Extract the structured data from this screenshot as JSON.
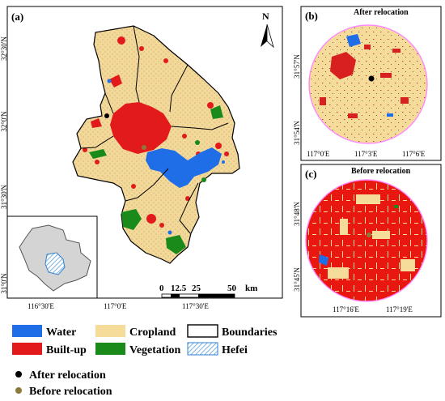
{
  "panel_a": {
    "label": "(a)",
    "north": "N",
    "lat_ticks": [
      "32°30'N",
      "32°0'N",
      "31°30'N",
      "31°0'N"
    ],
    "lon_ticks": [
      "116°30'E",
      "117°0'E",
      "117°30'E"
    ],
    "scale": {
      "ticks": [
        "0",
        "12.5",
        "25",
        "50"
      ],
      "unit": "km"
    }
  },
  "panel_b": {
    "label": "(b)",
    "title": "After relocation",
    "lat_ticks": [
      "31°57'N",
      "31°54'N"
    ],
    "lon_ticks": [
      "117°0'E",
      "117°3'E",
      "117°6'E"
    ]
  },
  "panel_c": {
    "label": "(c)",
    "title": "Before relocation",
    "lat_ticks": [
      "31°48'N",
      "31°45'N"
    ],
    "lon_ticks": [
      "117°16'E",
      "117°19'E"
    ]
  },
  "legend": {
    "items": [
      {
        "label": "Water",
        "color": "#1f6ee8",
        "kind": "fill"
      },
      {
        "label": "Cropland",
        "color": "#f5dc9a",
        "kind": "fill"
      },
      {
        "label": "Boundaries",
        "color": "#000000",
        "kind": "outline"
      },
      {
        "label": "Built-up",
        "color": "#e31a1c",
        "kind": "fill"
      },
      {
        "label": "Vegetation",
        "color": "#1a8a1a",
        "kind": "fill"
      },
      {
        "label": "Hefei",
        "color": "#6fb0e0",
        "kind": "hatch"
      }
    ],
    "after": {
      "label": "After relocation",
      "color": "#000000"
    },
    "before": {
      "label": "Before relocation",
      "color": "#8b7a3a"
    }
  }
}
